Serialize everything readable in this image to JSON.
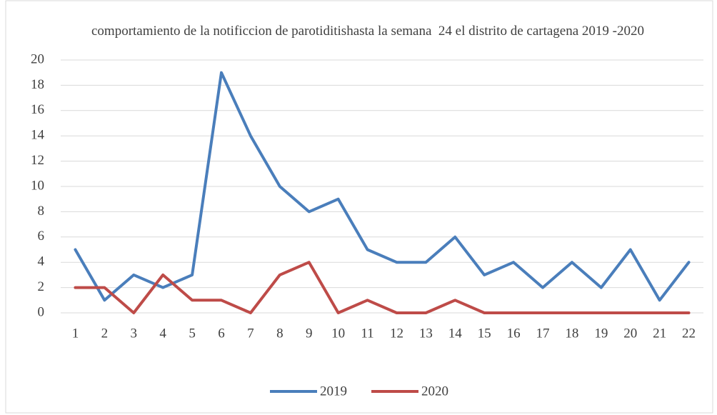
{
  "chart_data": {
    "type": "line",
    "title": "comportamiento de la notificcion de parotiditishasta la semana  24 el distrito de cartagena 2019 -2020",
    "categories": [
      "1",
      "2",
      "3",
      "4",
      "5",
      "6",
      "7",
      "8",
      "9",
      "10",
      "11",
      "12",
      "13",
      "14",
      "15",
      "16",
      "17",
      "18",
      "19",
      "20",
      "21",
      "22"
    ],
    "series": [
      {
        "name": "2019",
        "color": "#4a7ebb",
        "values": [
          5,
          1,
          3,
          2,
          3,
          19,
          14,
          10,
          8,
          9,
          5,
          4,
          4,
          6,
          3,
          4,
          2,
          4,
          2,
          5,
          1,
          4
        ]
      },
      {
        "name": "2020",
        "color": "#be4b48",
        "values": [
          2,
          2,
          0,
          3,
          1,
          1,
          0,
          3,
          4,
          0,
          1,
          0,
          0,
          1,
          0,
          0,
          0,
          0,
          0,
          0,
          0,
          0
        ]
      }
    ],
    "ylim": [
      0,
      20
    ],
    "yticks": [
      0,
      2,
      4,
      6,
      8,
      10,
      12,
      14,
      16,
      18,
      20
    ],
    "grid": true,
    "legend": "bottom"
  }
}
